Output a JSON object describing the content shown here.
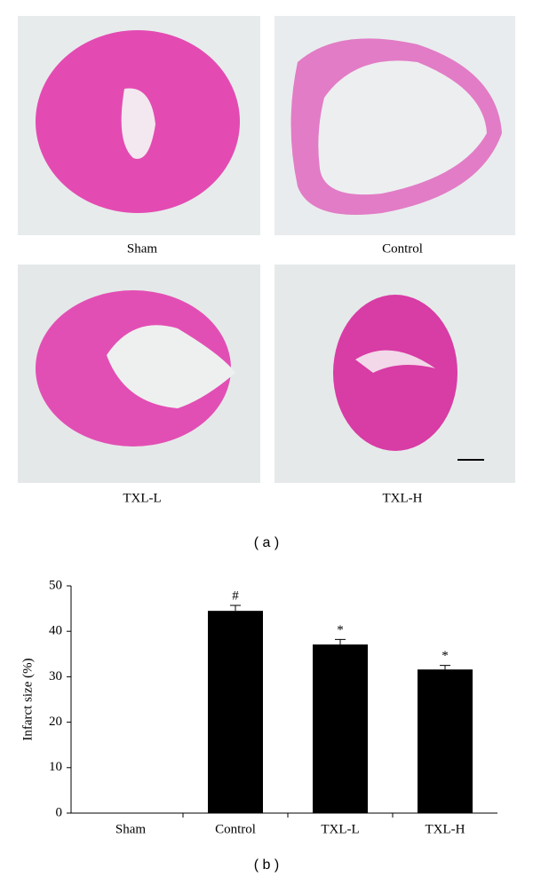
{
  "panel_a": {
    "images": [
      {
        "label": "Sham"
      },
      {
        "label": "Control"
      },
      {
        "label": "TXL-L"
      },
      {
        "label": "TXL-H"
      }
    ],
    "caption": "( a )"
  },
  "chart_data": {
    "type": "bar",
    "ylabel": "Infarct size (%)",
    "caption": "( b )",
    "categories": [
      "Sham",
      "Control",
      "TXL-L",
      "TXL-H"
    ],
    "values": [
      0,
      44.5,
      37.1,
      31.6
    ],
    "errors": [
      0,
      1.2,
      1.1,
      0.9
    ],
    "markers": [
      null,
      "#",
      "*",
      "*"
    ],
    "color": "#000000",
    "ylim": [
      0,
      50
    ],
    "yticks": [
      0,
      10,
      20,
      30,
      40,
      50
    ],
    "grid": false
  }
}
